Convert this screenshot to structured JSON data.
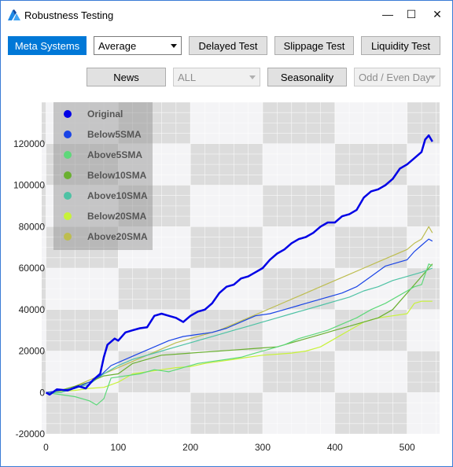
{
  "window": {
    "title": "Robustness Testing",
    "icon": "app-logo-icon"
  },
  "titlebar_controls": {
    "minimize": "—",
    "maximize": "☐",
    "close": "✕"
  },
  "toolbar": {
    "meta_systems": "Meta Systems",
    "average_select": "Average",
    "delayed_test": "Delayed Test",
    "slippage_test": "Slippage Test",
    "liquidity_test": "Liquidity Test",
    "news": "News",
    "all_select": "ALL",
    "seasonality": "Seasonality",
    "odd_even_select": "Odd / Even Day"
  },
  "chart_data": {
    "type": "line",
    "title": "",
    "xlabel": "",
    "ylabel": "",
    "xlim": [
      -6,
      545
    ],
    "ylim": [
      -20000,
      140000
    ],
    "x_ticks": [
      0,
      100,
      200,
      300,
      400,
      500
    ],
    "y_ticks": [
      -20000,
      0,
      20000,
      40000,
      60000,
      80000,
      100000,
      120000
    ],
    "grid": true,
    "legend_position": "top-left",
    "series": [
      {
        "name": "Original",
        "color": "#0000e6",
        "width": 2.5,
        "points": [
          [
            0,
            0
          ],
          [
            5,
            -1000
          ],
          [
            15,
            1500
          ],
          [
            30,
            1000
          ],
          [
            45,
            3000
          ],
          [
            55,
            2000
          ],
          [
            65,
            6000
          ],
          [
            75,
            9000
          ],
          [
            80,
            17000
          ],
          [
            85,
            23000
          ],
          [
            95,
            26000
          ],
          [
            100,
            25000
          ],
          [
            110,
            29000
          ],
          [
            120,
            30000
          ],
          [
            130,
            31000
          ],
          [
            140,
            31500
          ],
          [
            150,
            37000
          ],
          [
            160,
            38000
          ],
          [
            170,
            37000
          ],
          [
            180,
            36000
          ],
          [
            190,
            34000
          ],
          [
            200,
            37000
          ],
          [
            210,
            39000
          ],
          [
            220,
            40000
          ],
          [
            230,
            43000
          ],
          [
            240,
            48000
          ],
          [
            250,
            51000
          ],
          [
            260,
            52000
          ],
          [
            270,
            55000
          ],
          [
            280,
            56000
          ],
          [
            290,
            58000
          ],
          [
            300,
            60000
          ],
          [
            310,
            64000
          ],
          [
            320,
            67000
          ],
          [
            330,
            69000
          ],
          [
            340,
            72000
          ],
          [
            350,
            74000
          ],
          [
            360,
            75000
          ],
          [
            370,
            77000
          ],
          [
            380,
            80000
          ],
          [
            390,
            82000
          ],
          [
            400,
            82000
          ],
          [
            410,
            85000
          ],
          [
            420,
            86000
          ],
          [
            430,
            88000
          ],
          [
            440,
            94000
          ],
          [
            450,
            97000
          ],
          [
            460,
            98000
          ],
          [
            470,
            100000
          ],
          [
            480,
            103000
          ],
          [
            490,
            108000
          ],
          [
            500,
            110000
          ],
          [
            510,
            113000
          ],
          [
            520,
            116000
          ],
          [
            525,
            122000
          ],
          [
            530,
            124000
          ],
          [
            535,
            121000
          ]
        ]
      },
      {
        "name": "Below5SMA",
        "color": "#1a44e6",
        "width": 1.2,
        "points": [
          [
            0,
            0
          ],
          [
            20,
            1000
          ],
          [
            40,
            2000
          ],
          [
            60,
            5000
          ],
          [
            75,
            8000
          ],
          [
            90,
            13000
          ],
          [
            110,
            16000
          ],
          [
            130,
            19000
          ],
          [
            150,
            22000
          ],
          [
            170,
            25000
          ],
          [
            190,
            27000
          ],
          [
            210,
            28000
          ],
          [
            230,
            29000
          ],
          [
            250,
            31000
          ],
          [
            270,
            34000
          ],
          [
            290,
            37000
          ],
          [
            310,
            38000
          ],
          [
            330,
            40000
          ],
          [
            350,
            42000
          ],
          [
            370,
            44000
          ],
          [
            390,
            46000
          ],
          [
            410,
            48000
          ],
          [
            430,
            51000
          ],
          [
            450,
            56000
          ],
          [
            470,
            61000
          ],
          [
            490,
            63000
          ],
          [
            500,
            64000
          ],
          [
            510,
            68000
          ],
          [
            520,
            71000
          ],
          [
            530,
            74000
          ],
          [
            535,
            73000
          ]
        ]
      },
      {
        "name": "Above5SMA",
        "color": "#5ed87a",
        "width": 1.2,
        "points": [
          [
            0,
            0
          ],
          [
            20,
            -1000
          ],
          [
            40,
            -2000
          ],
          [
            60,
            -4000
          ],
          [
            70,
            -6000
          ],
          [
            80,
            -3000
          ],
          [
            90,
            7000
          ],
          [
            110,
            8000
          ],
          [
            130,
            9000
          ],
          [
            150,
            11000
          ],
          [
            170,
            10000
          ],
          [
            190,
            12000
          ],
          [
            210,
            14000
          ],
          [
            230,
            15000
          ],
          [
            250,
            16000
          ],
          [
            270,
            17000
          ],
          [
            290,
            19000
          ],
          [
            310,
            21000
          ],
          [
            330,
            23000
          ],
          [
            350,
            26000
          ],
          [
            370,
            28000
          ],
          [
            390,
            30000
          ],
          [
            410,
            33000
          ],
          [
            430,
            36000
          ],
          [
            450,
            40000
          ],
          [
            470,
            43000
          ],
          [
            490,
            47000
          ],
          [
            500,
            49000
          ],
          [
            510,
            51000
          ],
          [
            520,
            52000
          ],
          [
            530,
            62000
          ],
          [
            535,
            61000
          ]
        ]
      },
      {
        "name": "Below10SMA",
        "color": "#6ab030",
        "width": 1.2,
        "points": [
          [
            0,
            0
          ],
          [
            20,
            1000
          ],
          [
            40,
            3000
          ],
          [
            60,
            5000
          ],
          [
            80,
            8000
          ],
          [
            100,
            9000
          ],
          [
            120,
            14000
          ],
          [
            140,
            16000
          ],
          [
            160,
            18000
          ],
          [
            180,
            18500
          ],
          [
            200,
            19000
          ],
          [
            220,
            19500
          ],
          [
            240,
            20000
          ],
          [
            260,
            20500
          ],
          [
            280,
            21000
          ],
          [
            300,
            21500
          ],
          [
            320,
            22000
          ],
          [
            340,
            24000
          ],
          [
            360,
            26000
          ],
          [
            380,
            28000
          ],
          [
            400,
            30000
          ],
          [
            420,
            32000
          ],
          [
            440,
            34000
          ],
          [
            460,
            36000
          ],
          [
            480,
            40000
          ],
          [
            490,
            44000
          ],
          [
            500,
            48000
          ],
          [
            510,
            52000
          ],
          [
            520,
            56000
          ],
          [
            530,
            60000
          ],
          [
            535,
            62000
          ]
        ]
      },
      {
        "name": "Above10SMA",
        "color": "#4ec2a4",
        "width": 1.2,
        "points": [
          [
            0,
            0
          ],
          [
            20,
            0
          ],
          [
            40,
            2000
          ],
          [
            60,
            4000
          ],
          [
            80,
            9000
          ],
          [
            100,
            13000
          ],
          [
            120,
            16000
          ],
          [
            140,
            18000
          ],
          [
            160,
            20000
          ],
          [
            180,
            22000
          ],
          [
            200,
            24000
          ],
          [
            220,
            26000
          ],
          [
            240,
            28000
          ],
          [
            260,
            30000
          ],
          [
            280,
            32000
          ],
          [
            300,
            34000
          ],
          [
            320,
            36000
          ],
          [
            340,
            38000
          ],
          [
            360,
            40000
          ],
          [
            380,
            42000
          ],
          [
            400,
            44000
          ],
          [
            420,
            46000
          ],
          [
            440,
            49000
          ],
          [
            460,
            51000
          ],
          [
            480,
            54000
          ],
          [
            500,
            56000
          ],
          [
            520,
            58000
          ],
          [
            535,
            60000
          ]
        ]
      },
      {
        "name": "Below20SMA",
        "color": "#c8f23a",
        "width": 1.2,
        "points": [
          [
            0,
            0
          ],
          [
            20,
            500
          ],
          [
            40,
            1000
          ],
          [
            60,
            2000
          ],
          [
            80,
            2500
          ],
          [
            100,
            5000
          ],
          [
            120,
            9000
          ],
          [
            140,
            10000
          ],
          [
            160,
            11000
          ],
          [
            180,
            12000
          ],
          [
            200,
            12500
          ],
          [
            220,
            14000
          ],
          [
            240,
            15000
          ],
          [
            260,
            16000
          ],
          [
            280,
            17000
          ],
          [
            300,
            18000
          ],
          [
            320,
            18500
          ],
          [
            340,
            19000
          ],
          [
            360,
            20000
          ],
          [
            380,
            22000
          ],
          [
            400,
            26000
          ],
          [
            420,
            30000
          ],
          [
            440,
            34000
          ],
          [
            460,
            36000
          ],
          [
            480,
            37000
          ],
          [
            500,
            38000
          ],
          [
            510,
            43000
          ],
          [
            520,
            44000
          ],
          [
            535,
            44000
          ]
        ]
      },
      {
        "name": "Above20SMA",
        "color": "#bdbd50",
        "width": 1.2,
        "points": [
          [
            0,
            0
          ],
          [
            20,
            1000
          ],
          [
            40,
            3000
          ],
          [
            60,
            6000
          ],
          [
            80,
            9000
          ],
          [
            100,
            12000
          ],
          [
            120,
            15000
          ],
          [
            140,
            18000
          ],
          [
            160,
            21000
          ],
          [
            180,
            24000
          ],
          [
            200,
            26000
          ],
          [
            220,
            28000
          ],
          [
            240,
            30000
          ],
          [
            260,
            33000
          ],
          [
            280,
            36000
          ],
          [
            300,
            39000
          ],
          [
            320,
            42000
          ],
          [
            340,
            45000
          ],
          [
            360,
            48000
          ],
          [
            380,
            51000
          ],
          [
            400,
            54000
          ],
          [
            420,
            57000
          ],
          [
            440,
            60000
          ],
          [
            460,
            63000
          ],
          [
            480,
            66000
          ],
          [
            500,
            69000
          ],
          [
            510,
            72000
          ],
          [
            520,
            74000
          ],
          [
            530,
            80000
          ],
          [
            535,
            77000
          ]
        ]
      }
    ]
  }
}
